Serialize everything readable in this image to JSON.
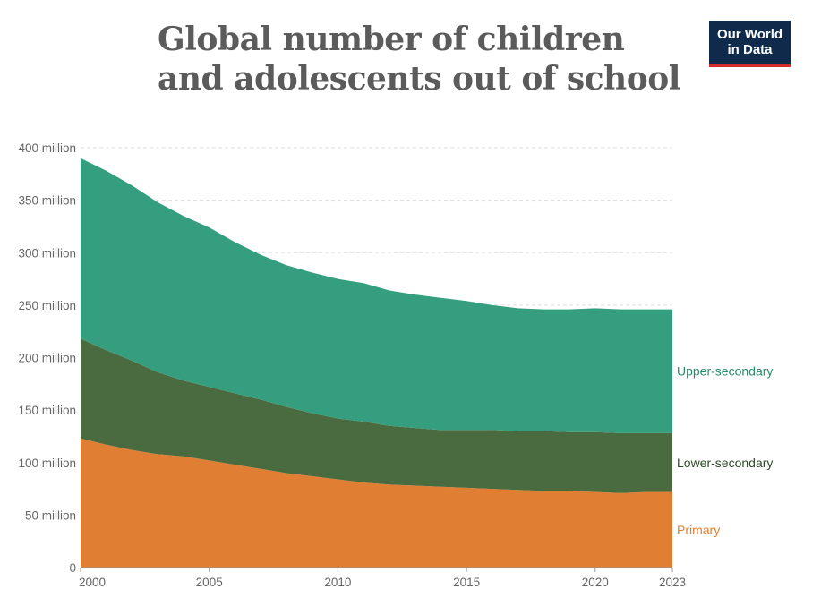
{
  "title": "Global number of children and adolescents out of school",
  "logo": {
    "line1": "Our World",
    "line2": "in Data"
  },
  "chart_data": {
    "type": "area",
    "stacked": true,
    "x": [
      2000,
      2001,
      2002,
      2003,
      2004,
      2005,
      2006,
      2007,
      2008,
      2009,
      2010,
      2011,
      2012,
      2013,
      2014,
      2015,
      2016,
      2017,
      2018,
      2019,
      2020,
      2021,
      2022,
      2023
    ],
    "series": [
      {
        "name": "Primary",
        "color": "#e07f34",
        "values": [
          123,
          117,
          112,
          108,
          106,
          102,
          98,
          94,
          90,
          87,
          84,
          81,
          79,
          78,
          77,
          76,
          75,
          74,
          73,
          73,
          72,
          71,
          72,
          72
        ]
      },
      {
        "name": "Lower-secondary",
        "color": "#4a6b3f",
        "values": [
          95,
          90,
          85,
          78,
          72,
          70,
          68,
          66,
          63,
          60,
          58,
          58,
          56,
          55,
          54,
          55,
          56,
          56,
          57,
          56,
          57,
          57,
          56,
          56
        ]
      },
      {
        "name": "Upper-secondary",
        "color": "#359e7e",
        "values": [
          172,
          171,
          167,
          162,
          157,
          152,
          144,
          138,
          135,
          134,
          133,
          132,
          129,
          127,
          126,
          123,
          119,
          117,
          116,
          117,
          118,
          118,
          118,
          118
        ]
      }
    ],
    "ylim": [
      0,
      400
    ],
    "yticks": [
      0,
      50,
      100,
      150,
      200,
      250,
      300,
      350,
      400
    ],
    "ytick_labels": [
      "0",
      "50 million",
      "100 million",
      "150 million",
      "200 million",
      "250 million",
      "300 million",
      "350 million",
      "400 million"
    ],
    "xticks": [
      2000,
      2005,
      2010,
      2015,
      2020,
      2023
    ],
    "xtick_labels": [
      "2000",
      "2005",
      "2010",
      "2015",
      "2020",
      "2023"
    ],
    "grid": true,
    "legend": "right, inline labels"
  }
}
